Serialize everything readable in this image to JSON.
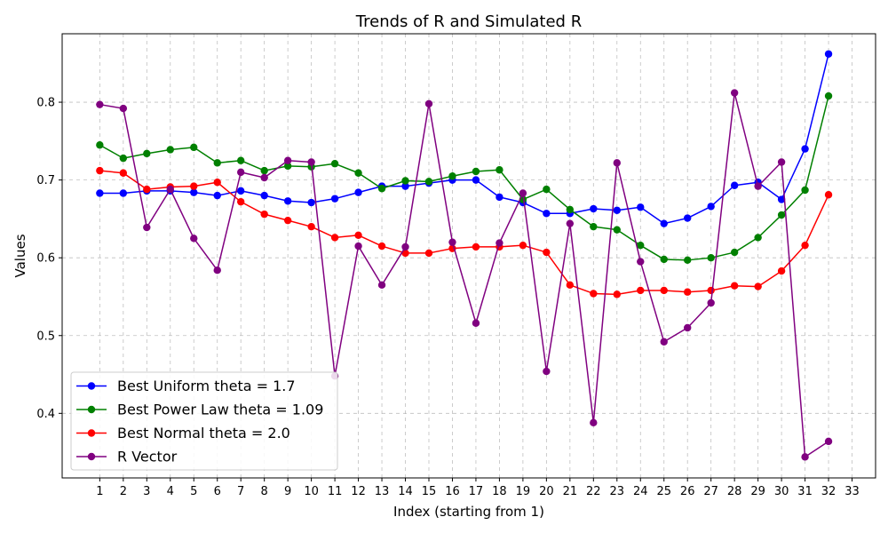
{
  "chart_data": {
    "type": "line",
    "title": "Trends of R and Simulated R",
    "xlabel": "Index (starting from 1)",
    "ylabel": "Values",
    "x": [
      1,
      2,
      3,
      4,
      5,
      6,
      7,
      8,
      9,
      10,
      11,
      12,
      13,
      14,
      15,
      16,
      17,
      18,
      19,
      20,
      21,
      22,
      23,
      24,
      25,
      26,
      27,
      28,
      29,
      30,
      31,
      32
    ],
    "x_ticks": [
      1,
      2,
      3,
      4,
      5,
      6,
      7,
      8,
      9,
      10,
      11,
      12,
      13,
      14,
      15,
      16,
      17,
      18,
      19,
      20,
      21,
      22,
      23,
      24,
      25,
      26,
      27,
      28,
      29,
      30,
      31,
      32,
      33
    ],
    "xlim": [
      -0.6,
      34.0
    ],
    "ylim": [
      0.317,
      0.888
    ],
    "y_ticks": [
      0.4,
      0.5,
      0.6,
      0.7,
      0.8
    ],
    "grid": true,
    "legend_position": "lower-left",
    "series": [
      {
        "name": "Best Uniform theta = 1.7",
        "color": "#0000ff",
        "values": [
          0.683,
          0.683,
          0.686,
          0.686,
          0.684,
          0.68,
          0.686,
          0.68,
          0.673,
          0.671,
          0.676,
          0.684,
          0.692,
          0.692,
          0.696,
          0.7,
          0.7,
          0.678,
          0.671,
          0.657,
          0.657,
          0.663,
          0.661,
          0.665,
          0.644,
          0.651,
          0.666,
          0.693,
          0.697,
          0.675,
          0.74,
          0.862
        ]
      },
      {
        "name": "Best Power Law theta = 1.09",
        "color": "#008000",
        "values": [
          0.745,
          0.728,
          0.734,
          0.739,
          0.742,
          0.722,
          0.725,
          0.712,
          0.718,
          0.717,
          0.721,
          0.709,
          0.689,
          0.699,
          0.698,
          0.705,
          0.711,
          0.713,
          0.675,
          0.688,
          0.662,
          0.64,
          0.636,
          0.616,
          0.598,
          0.597,
          0.6,
          0.607,
          0.626,
          0.655,
          0.687,
          0.808
        ]
      },
      {
        "name": "Best Normal theta = 2.0",
        "color": "#ff0000",
        "values": [
          0.712,
          0.709,
          0.688,
          0.691,
          0.692,
          0.697,
          0.672,
          0.656,
          0.648,
          0.64,
          0.626,
          0.629,
          0.615,
          0.606,
          0.606,
          0.612,
          0.614,
          0.614,
          0.616,
          0.607,
          0.565,
          0.554,
          0.553,
          0.558,
          0.558,
          0.556,
          0.558,
          0.564,
          0.563,
          0.583,
          0.616,
          0.681
        ]
      },
      {
        "name": "R Vector",
        "color": "#800080",
        "values": [
          0.797,
          0.792,
          0.639,
          0.688,
          0.625,
          0.584,
          0.71,
          0.703,
          0.725,
          0.723,
          0.448,
          0.615,
          0.565,
          0.614,
          0.798,
          0.62,
          0.516,
          0.619,
          0.683,
          0.454,
          0.644,
          0.388,
          0.722,
          0.595,
          0.492,
          0.51,
          0.542,
          0.812,
          0.692,
          0.723,
          0.344,
          0.364
        ]
      }
    ]
  }
}
